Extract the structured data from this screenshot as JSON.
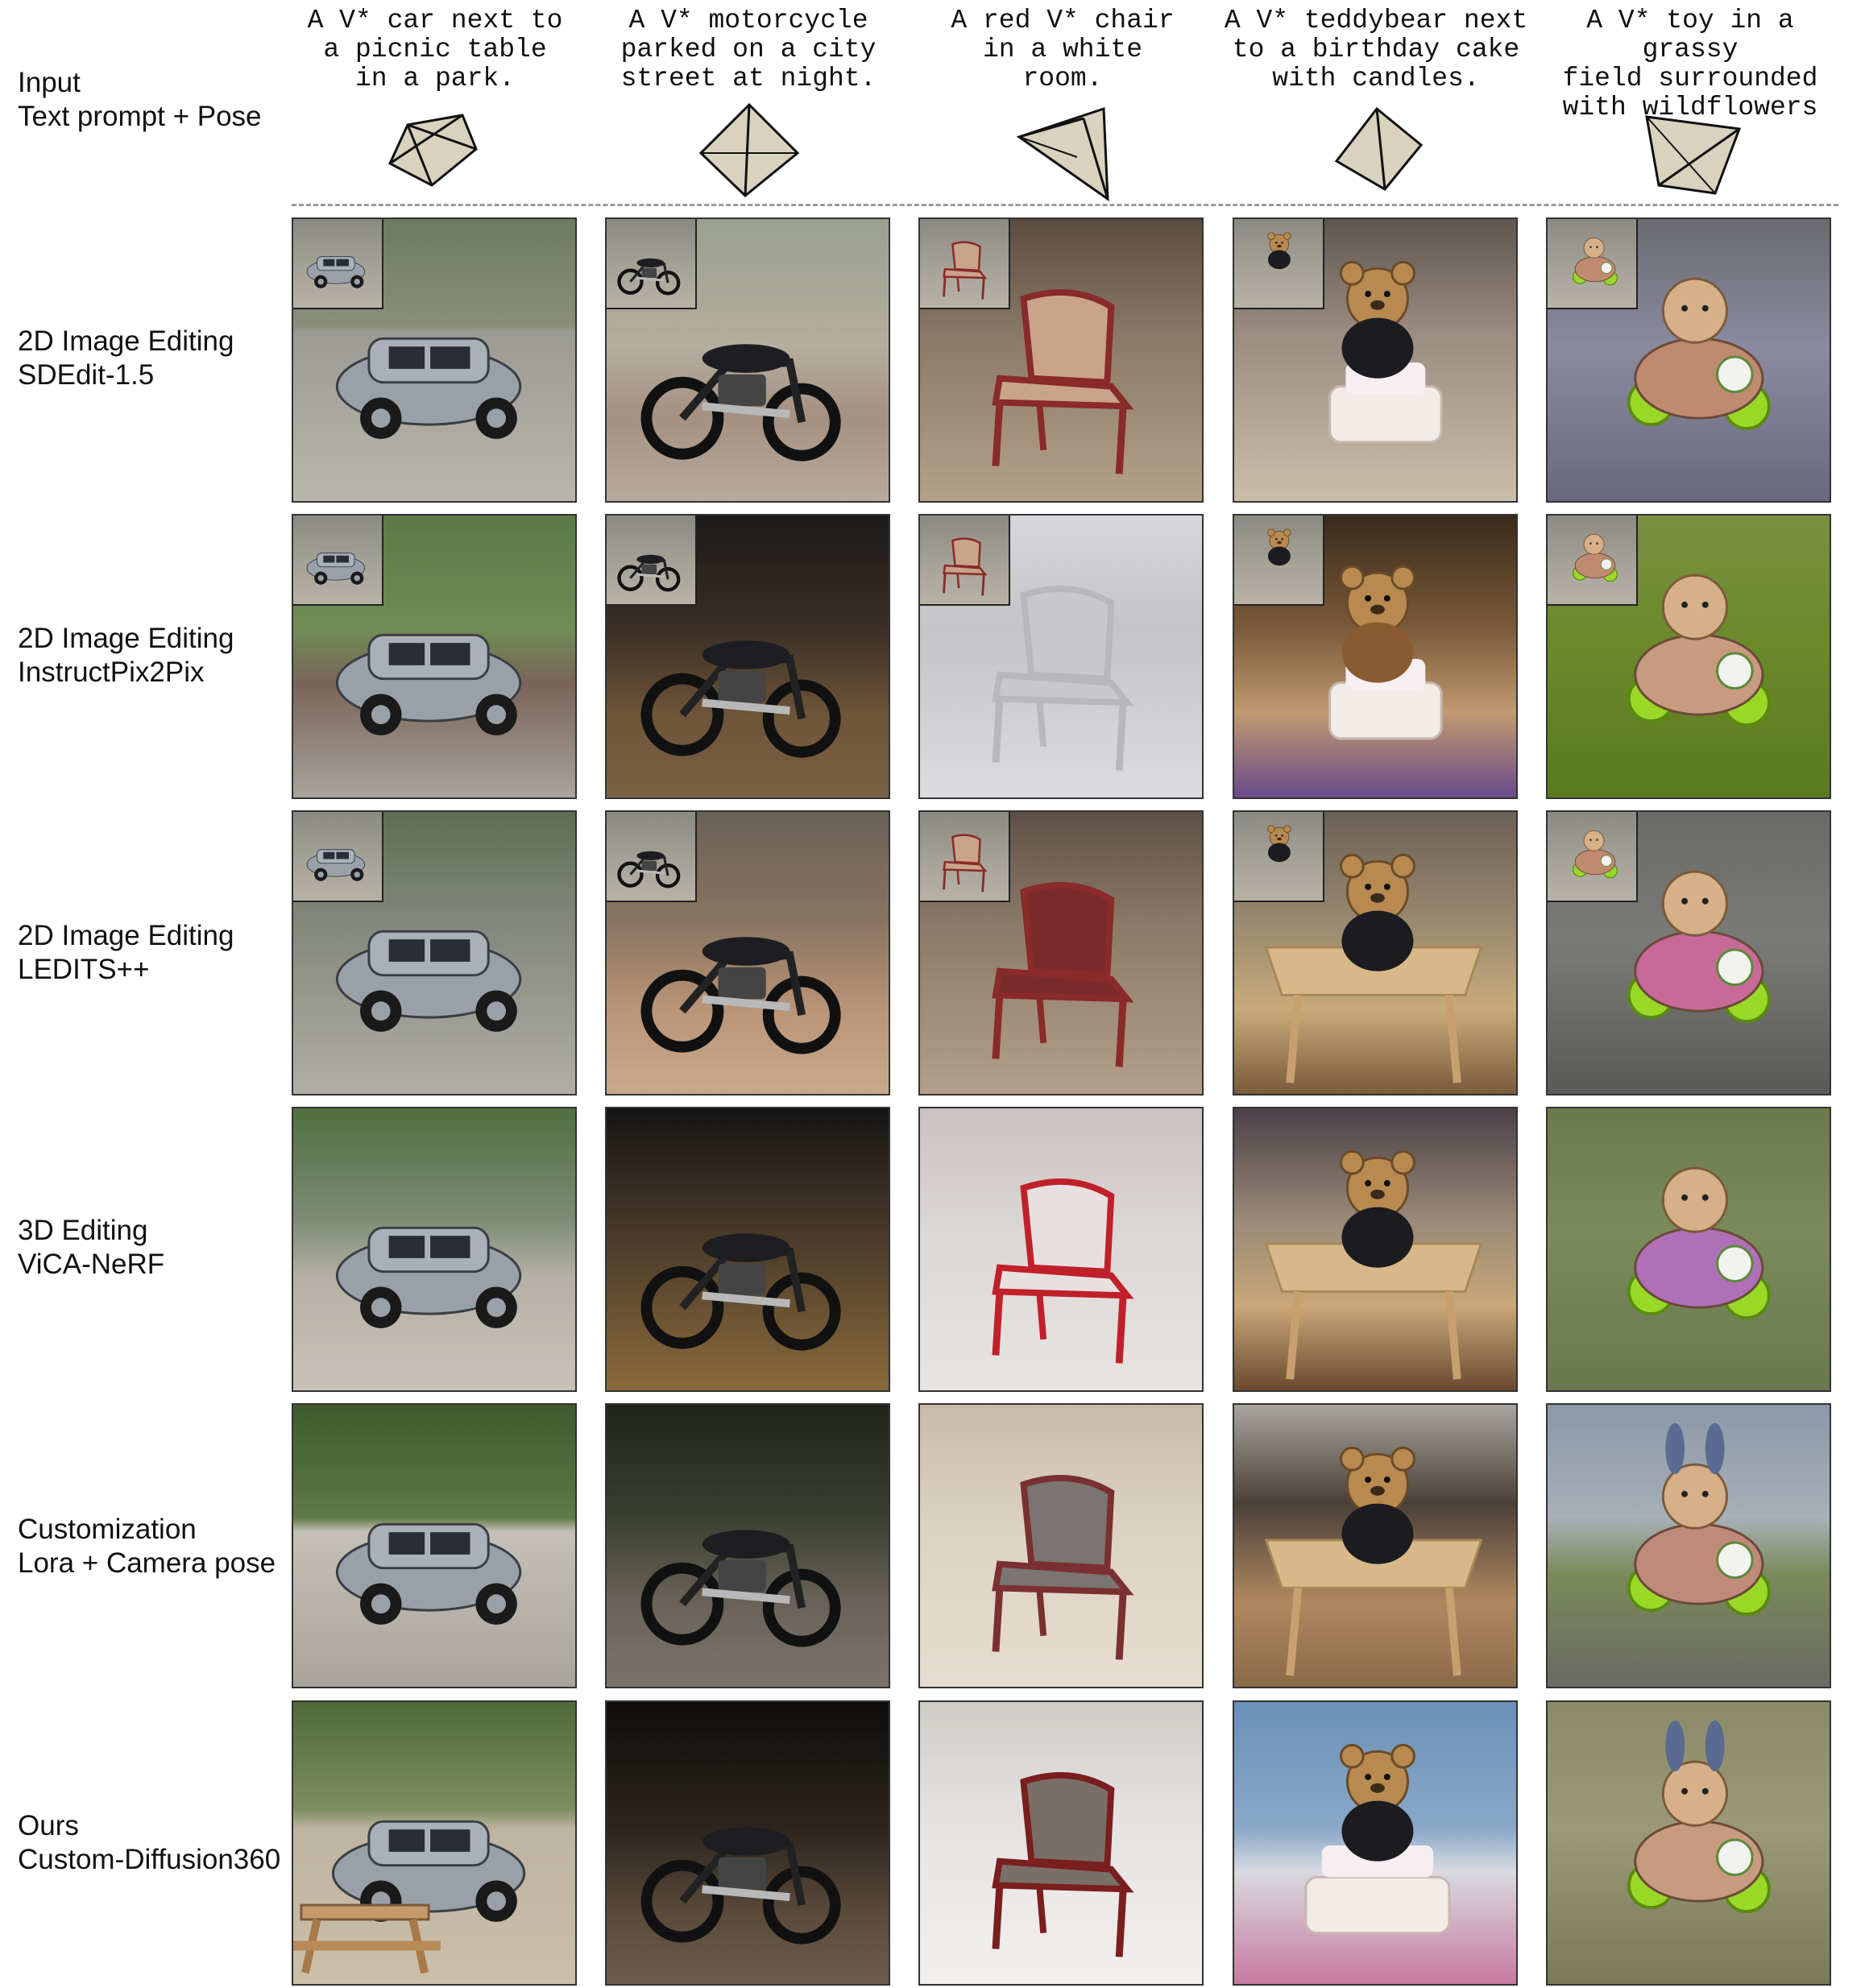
{
  "columns": [
    {
      "prompt": "A  V* car next to\na picnic table\nin a park."
    },
    {
      "prompt": "A V* motorcycle\nparked on a city\nstreet at night."
    },
    {
      "prompt": "A red V* chair\nin a white\nroom."
    },
    {
      "prompt": "A V* teddybear next\nto a birthday cake\nwith candles."
    },
    {
      "prompt": "A V* toy in a grassy\nfield surrounded\nwith wildflowers"
    }
  ],
  "rows": [
    {
      "title": "Input",
      "subtitle": "Text prompt + Pose"
    },
    {
      "title": "2D Image Editing",
      "subtitle": "SDEdit-1.5"
    },
    {
      "title": "2D Image Editing",
      "subtitle": "InstructPix2Pix"
    },
    {
      "title": "2D Image Editing",
      "subtitle": "LEDITS++"
    },
    {
      "title": "3D Editing",
      "subtitle": "ViCA-NeRF"
    },
    {
      "title": "Customization",
      "subtitle": "Lora + Camera pose"
    },
    {
      "title": "Ours",
      "subtitle": "Custom-Diffusion360"
    }
  ],
  "image_content": [
    "car",
    "motorcycle",
    "chair",
    "teddybear",
    "toy"
  ],
  "colors": {
    "pose_face": "#d8d2bf",
    "divider": "#9a9a9a",
    "frame": "#333333"
  }
}
